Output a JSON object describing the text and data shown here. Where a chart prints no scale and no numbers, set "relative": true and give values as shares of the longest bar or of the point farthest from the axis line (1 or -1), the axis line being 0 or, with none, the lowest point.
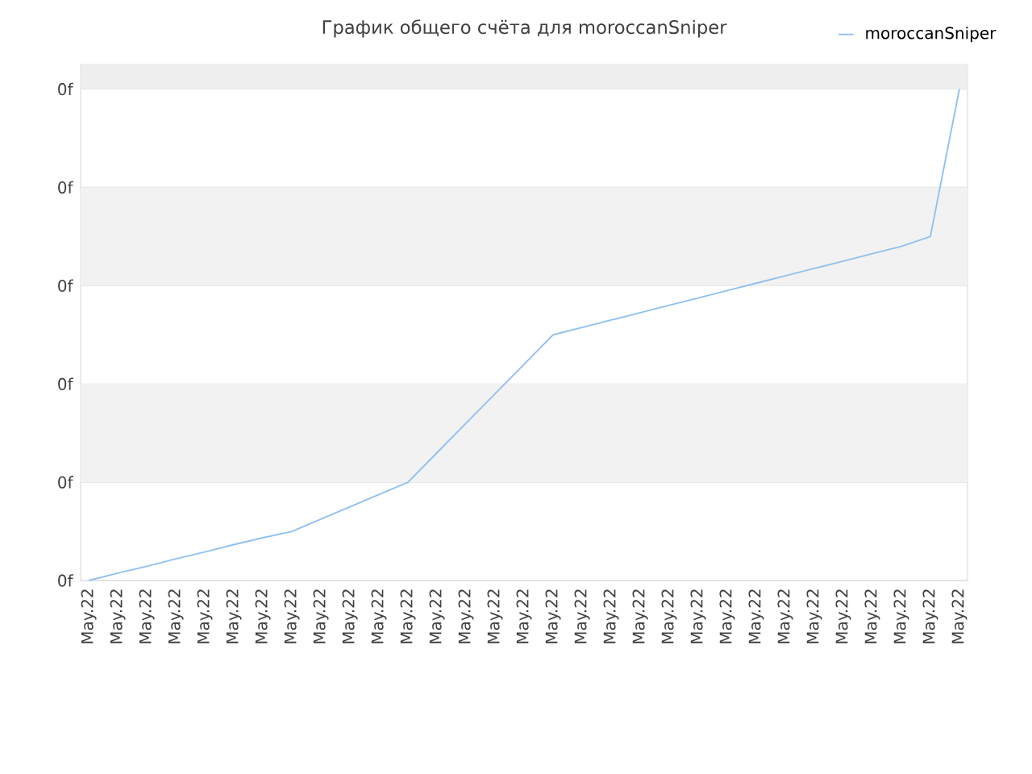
{
  "chart_data": {
    "type": "line",
    "title": "График общего счёта для moroccanSniper",
    "relative": true,
    "categories": [
      "May.22",
      "May.22",
      "May.22",
      "May.22",
      "May.22",
      "May.22",
      "May.22",
      "May.22",
      "May.22",
      "May.22",
      "May.22",
      "May.22",
      "May.22",
      "May.22",
      "May.22",
      "May.22",
      "May.22",
      "May.22",
      "May.22",
      "May.22",
      "May.22",
      "May.22",
      "May.22",
      "May.22",
      "May.22",
      "May.22",
      "May.22",
      "May.22",
      "May.22",
      "May.22",
      "May.22"
    ],
    "series": [
      {
        "name": "moroccanSniper",
        "color": "#90c0f0",
        "values": [
          0,
          0.015,
          0.029,
          0.044,
          0.058,
          0.073,
          0.087,
          0.1,
          0.125,
          0.15,
          0.175,
          0.2,
          0.26,
          0.32,
          0.38,
          0.44,
          0.5,
          0.515,
          0.53,
          0.545,
          0.56,
          0.575,
          0.59,
          0.605,
          0.62,
          0.635,
          0.65,
          0.665,
          0.68,
          0.7,
          1
        ]
      }
    ],
    "annotations": [
      "0f",
      "0f",
      "0f",
      "0f",
      "0f",
      "0f"
    ],
    "bands": [
      {
        "axis": "y",
        "from": 0.2,
        "to": 0.4,
        "color": "#f2f2f2"
      },
      {
        "axis": "y",
        "from": 0.6,
        "to": 0.8,
        "color": "#f2f2f2"
      },
      {
        "axis": "y",
        "from": 1,
        "to": 1.05,
        "color": "#eeeeee"
      }
    ],
    "grid": "y",
    "legend": "top right",
    "marker": "none",
    "line_style": "solid"
  }
}
